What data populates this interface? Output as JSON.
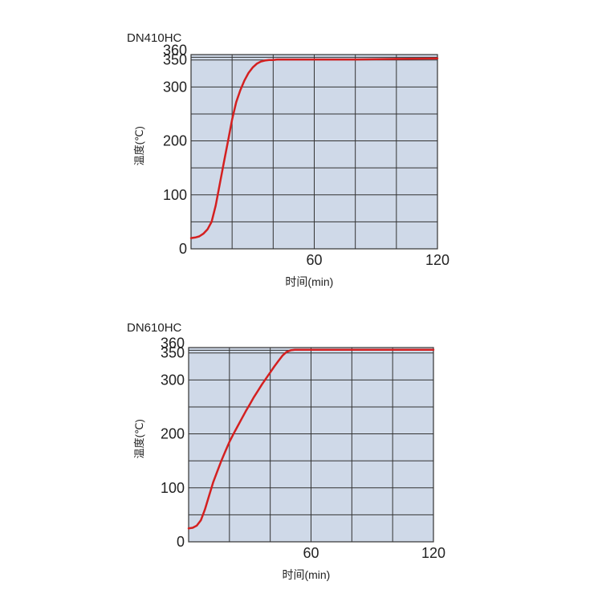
{
  "chart_data": [
    {
      "type": "line",
      "title": "DN410HC",
      "xlabel": "时间(min)",
      "ylabel": "温度(℃)",
      "xlim": [
        0,
        120
      ],
      "ylim": [
        0,
        360
      ],
      "x_ticks": [
        "0",
        "60",
        "120"
      ],
      "y_ticks": [
        "0",
        "100",
        "200",
        "300",
        "350",
        "360"
      ],
      "grid": true,
      "background": "#cfd9e8",
      "line_color": "#d42020",
      "series": [
        {
          "x": [
            0,
            2,
            4,
            6,
            8,
            10,
            12,
            14,
            16,
            18,
            20,
            22,
            24,
            26,
            28,
            30,
            32,
            34,
            36,
            38,
            40,
            42,
            44,
            46,
            48,
            50,
            55,
            60,
            80,
            100,
            120
          ],
          "y": [
            20,
            21,
            23,
            28,
            36,
            50,
            80,
            120,
            160,
            200,
            240,
            272,
            294,
            312,
            326,
            336,
            343,
            347,
            349,
            350,
            350,
            351,
            351,
            351,
            351,
            351,
            351,
            351,
            351,
            352,
            353
          ]
        }
      ]
    },
    {
      "type": "line",
      "title": "DN610HC",
      "xlabel": "时间(min)",
      "ylabel": "温度(℃)",
      "xlim": [
        0,
        120
      ],
      "ylim": [
        0,
        360
      ],
      "x_ticks": [
        "0",
        "60",
        "120"
      ],
      "y_ticks": [
        "0",
        "100",
        "200",
        "300",
        "350",
        "360"
      ],
      "grid": true,
      "background": "#cfd9e8",
      "line_color": "#d42020",
      "series": [
        {
          "x": [
            0,
            2,
            4,
            6,
            8,
            10,
            12,
            14,
            16,
            18,
            20,
            22,
            24,
            26,
            28,
            30,
            32,
            34,
            36,
            38,
            40,
            42,
            44,
            46,
            48,
            50,
            52,
            54,
            56,
            58,
            60,
            80,
            100,
            120
          ],
          "y": [
            25,
            26,
            30,
            40,
            60,
            85,
            110,
            130,
            150,
            168,
            185,
            200,
            214,
            228,
            242,
            255,
            268,
            280,
            292,
            303,
            314,
            325,
            335,
            345,
            352,
            355,
            356,
            356,
            356,
            356,
            356,
            356,
            356,
            356
          ]
        }
      ]
    }
  ]
}
